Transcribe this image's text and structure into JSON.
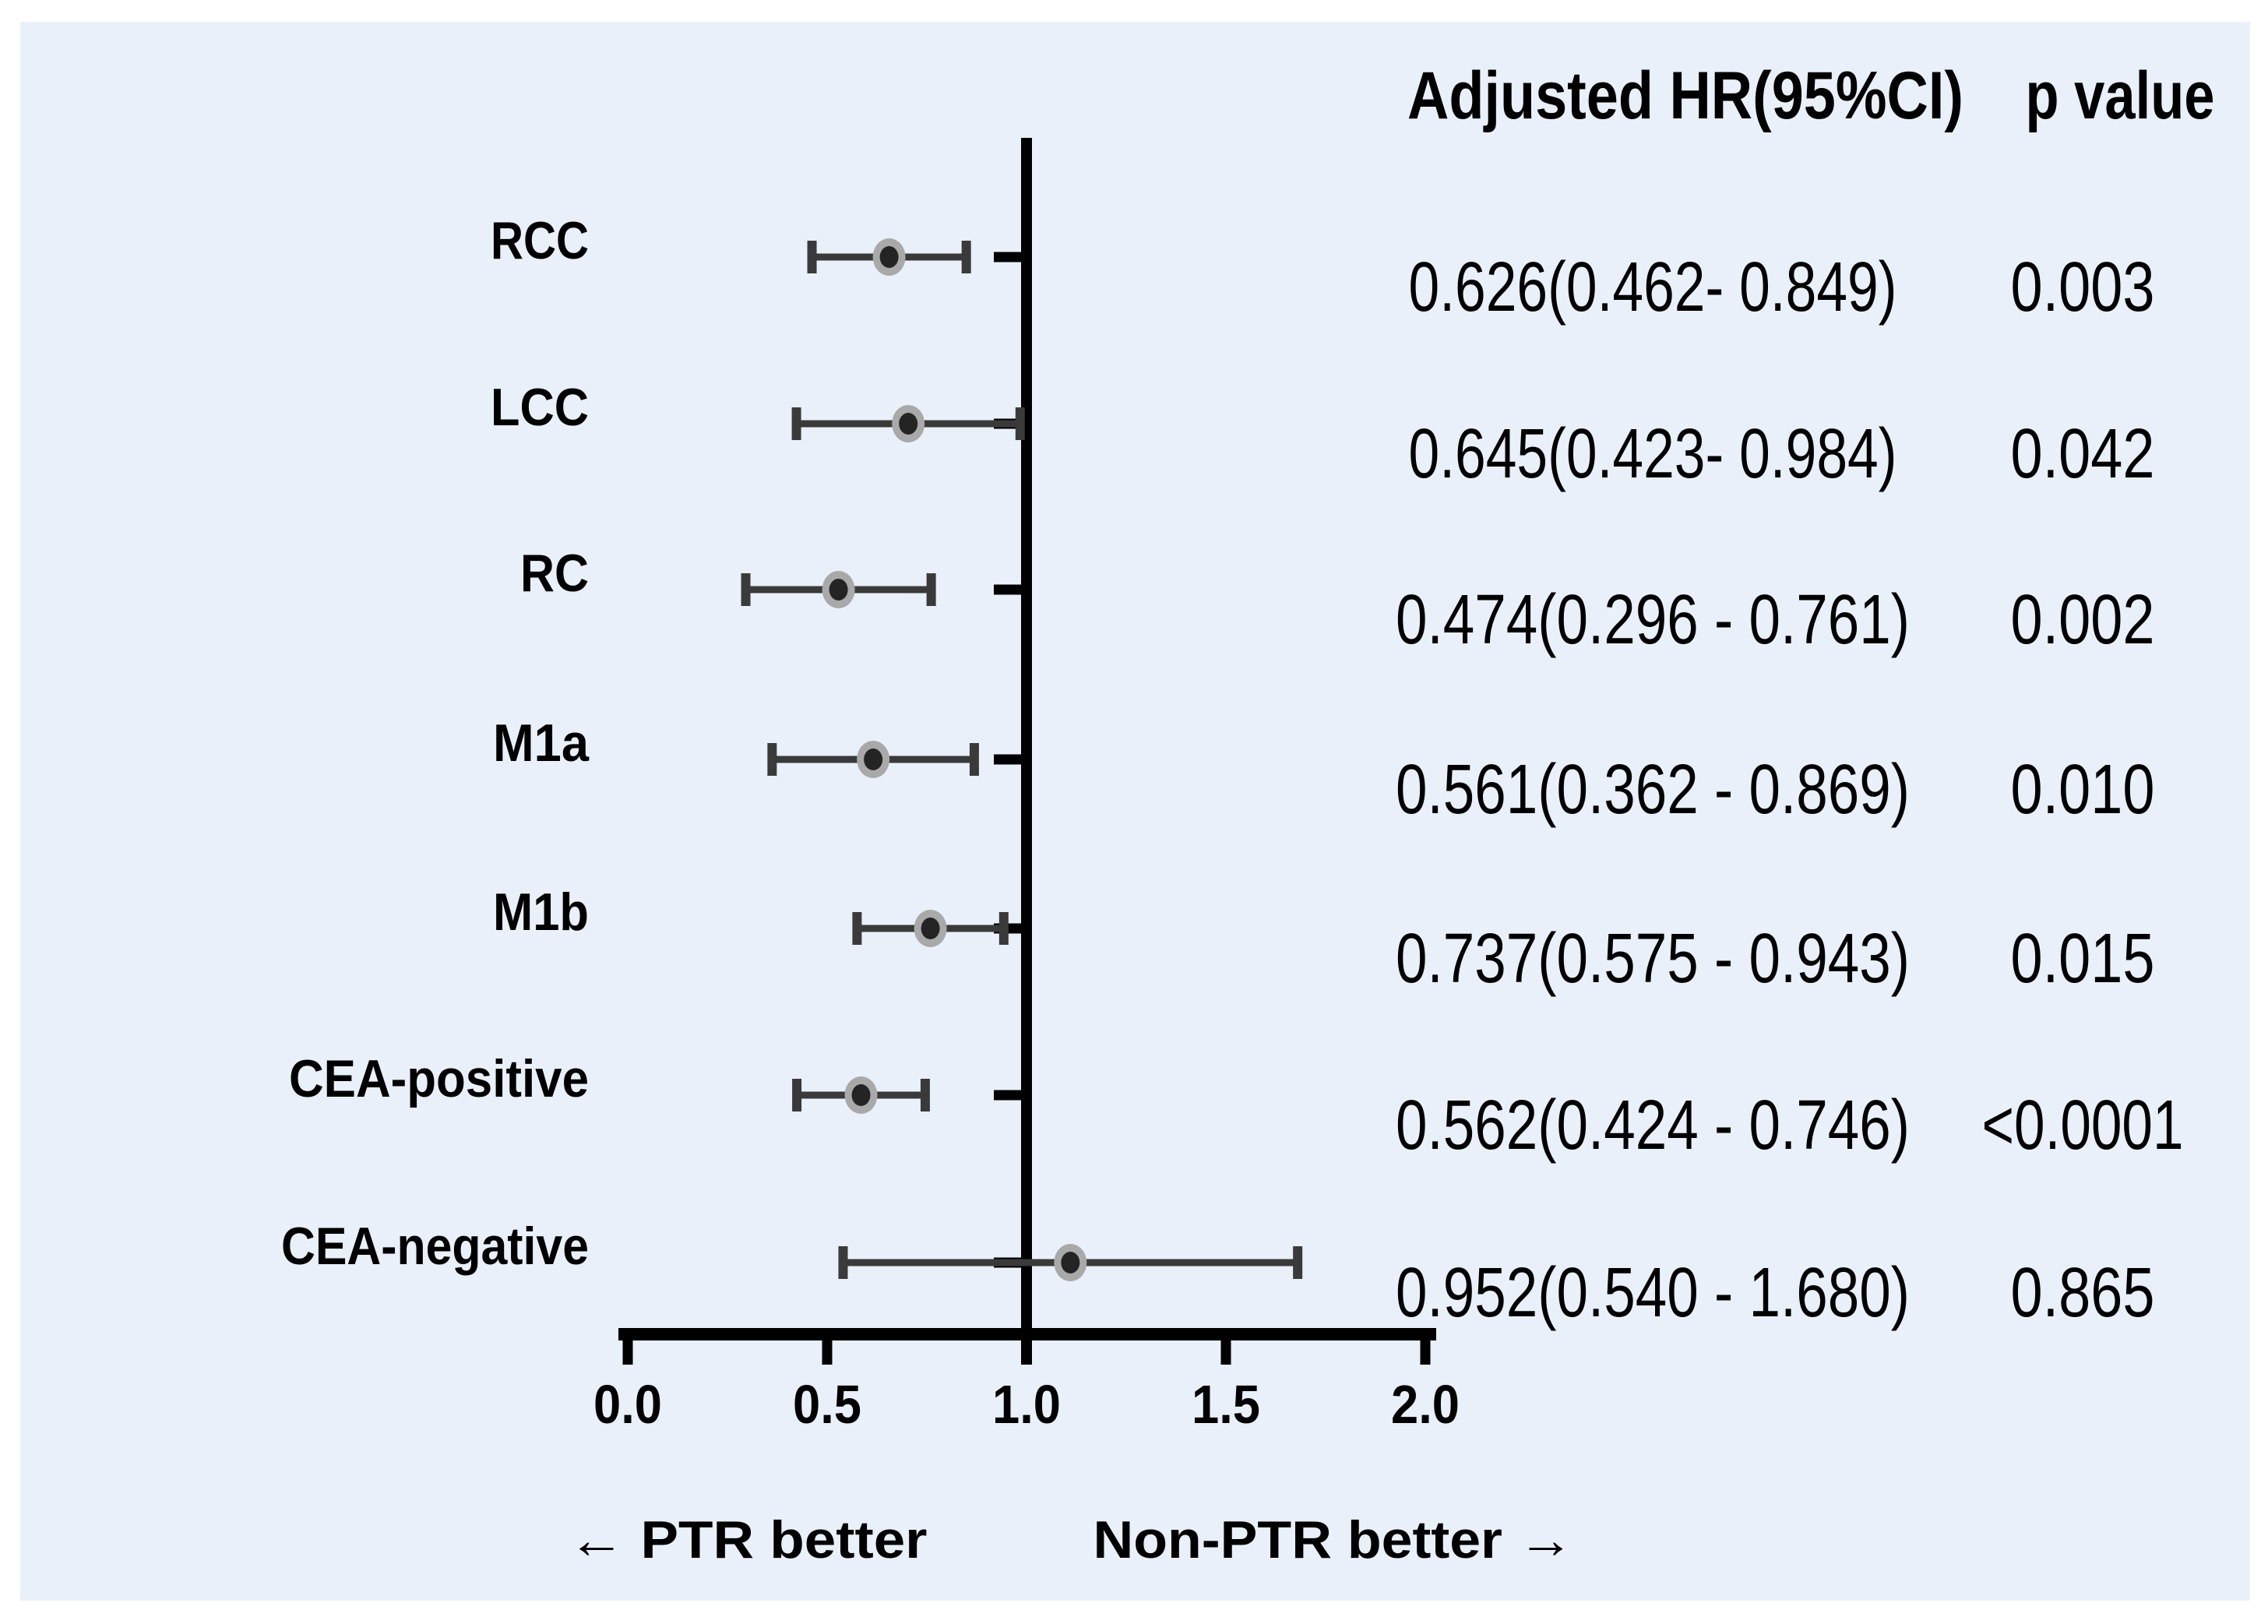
{
  "chart_data": {
    "type": "forest",
    "title": "",
    "columns": {
      "hr_header": "Adjusted HR(95%CI)",
      "p_header": "p value"
    },
    "rows": [
      {
        "label": "RCC",
        "hr": 0.626,
        "ci_low": 0.462,
        "ci_high": 0.849,
        "hr_ci_text": "0.626(0.462- 0.849)",
        "p_text": "0.003"
      },
      {
        "label": "LCC",
        "hr": 0.645,
        "ci_low": 0.423,
        "ci_high": 0.984,
        "hr_ci_text": "0.645(0.423- 0.984)",
        "p_text": "0.042"
      },
      {
        "label": "RC",
        "hr": 0.474,
        "ci_low": 0.296,
        "ci_high": 0.761,
        "hr_ci_text": "0.474(0.296 - 0.761)",
        "p_text": "0.002"
      },
      {
        "label": "M1a",
        "hr": 0.561,
        "ci_low": 0.362,
        "ci_high": 0.869,
        "hr_ci_text": "0.561(0.362 - 0.869)",
        "p_text": "0.010"
      },
      {
        "label": "M1b",
        "hr": 0.737,
        "ci_low": 0.575,
        "ci_high": 0.943,
        "hr_ci_text": "0.737(0.575 - 0.943)",
        "p_text": "0.015"
      },
      {
        "label": "CEA-positive",
        "hr": 0.562,
        "ci_low": 0.424,
        "ci_high": 0.746,
        "hr_ci_text": "0.562(0.424 - 0.746)",
        "p_text": "<0.0001"
      },
      {
        "label": "CEA-negative",
        "hr": 0.952,
        "ci_low": 0.54,
        "ci_high": 1.68,
        "hr_ci_text": "0.952(0.540 - 1.680)",
        "p_text": "0.865"
      }
    ],
    "x_axis": {
      "min": 0,
      "max": 2,
      "reference_line": 1.0,
      "ticks": [
        {
          "label": "0.0",
          "value": 0.0
        },
        {
          "label": "0.5",
          "value": 0.5
        },
        {
          "label": "1.0",
          "value": 1.0
        },
        {
          "label": "1.5",
          "value": 1.5
        },
        {
          "label": "2.0",
          "value": 2.0
        }
      ]
    },
    "footer": {
      "left_arrow_label": "← PTR better",
      "right_arrow_label": "Non-PTR better →"
    },
    "grid": false,
    "legend_position": "none"
  },
  "colors": {
    "page_bg": "#ffffff",
    "panel_bg": "#e9f0f9",
    "axis": "#000000",
    "whisker": "#3a3a3a",
    "dot_inner": "#242424",
    "dot_outer": "#a9a9a9",
    "text": "#000000"
  }
}
